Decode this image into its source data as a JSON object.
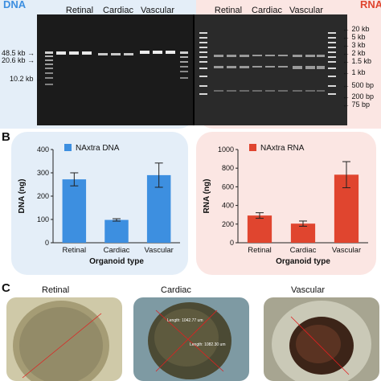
{
  "panel_a": {
    "dna_label": "DNA",
    "rna_label": "RNA",
    "dna_groups": [
      "Retinal",
      "Cardiac",
      "Vascular"
    ],
    "rna_groups": [
      "Retinal",
      "Cardiac",
      "Vascular"
    ],
    "dna_markers": [
      "48.5 kb",
      "20.6 kb",
      "10.2 kb"
    ],
    "rna_markers": [
      "20 kb",
      "5 kb",
      "3 kb",
      "2 kb",
      "1.5 kb",
      "1 kb",
      "500 bp",
      "200 bp",
      "75 bp"
    ]
  },
  "panel_b": {
    "letter": "B",
    "dna_legend": "NAxtra DNA",
    "rna_legend": "NAxtra RNA",
    "xlabel": "Organoid type",
    "dna_color": "#3d8fe0",
    "rna_color": "#e0452f"
  },
  "panel_c": {
    "letter": "C",
    "titles": [
      "Retinal",
      "Cardiac",
      "Vascular"
    ],
    "scale_labels": [
      "Length: 1042.77 um",
      "Length: 1082.30 um"
    ]
  },
  "chart_data": [
    {
      "type": "bar",
      "legend": [
        "NAxtra DNA"
      ],
      "categories": [
        "Retinal",
        "Cardiac",
        "Vascular"
      ],
      "values": [
        272,
        98,
        290
      ],
      "errors": [
        28,
        5,
        52
      ],
      "xlabel": "Organoid type",
      "ylabel": "DNA (ng)",
      "ylim": [
        0,
        400
      ],
      "yticks": [
        0,
        100,
        200,
        300,
        400
      ]
    },
    {
      "type": "bar",
      "legend": [
        "NAxtra RNA"
      ],
      "categories": [
        "Retinal",
        "Cardiac",
        "Vascular"
      ],
      "values": [
        292,
        205,
        730
      ],
      "errors": [
        30,
        28,
        140
      ],
      "xlabel": "Organoid type",
      "ylabel": "RNA (ng)",
      "ylim": [
        0,
        1000
      ],
      "yticks": [
        0,
        200,
        400,
        600,
        800,
        1000
      ]
    }
  ]
}
